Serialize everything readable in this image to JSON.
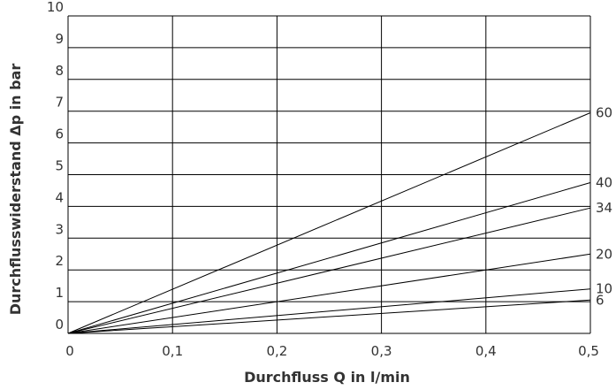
{
  "chart_data": {
    "type": "line",
    "title": "",
    "xlabel": "Durchfluss Q in l/min",
    "ylabel": "Durchflusswiderstand Δp in bar",
    "xlim": [
      0,
      0.5
    ],
    "ylim": [
      0,
      10
    ],
    "x_ticks": [
      "0",
      "0,1",
      "0,2",
      "0,3",
      "0,4",
      "0,5"
    ],
    "y_ticks": [
      "0",
      "1",
      "2",
      "3",
      "4",
      "5",
      "6",
      "7",
      "8",
      "9",
      "10"
    ],
    "grid": true,
    "series": [
      {
        "name": "60",
        "x": [
          0,
          0.5
        ],
        "y": [
          0,
          6.95
        ]
      },
      {
        "name": "40",
        "x": [
          0,
          0.5
        ],
        "y": [
          0,
          4.75
        ]
      },
      {
        "name": "34",
        "x": [
          0,
          0.5
        ],
        "y": [
          0,
          3.95
        ]
      },
      {
        "name": "20",
        "x": [
          0,
          0.5
        ],
        "y": [
          0,
          2.5
        ]
      },
      {
        "name": "10",
        "x": [
          0,
          0.5
        ],
        "y": [
          0,
          1.4
        ]
      },
      {
        "name": "6",
        "x": [
          0,
          0.5
        ],
        "y": [
          0,
          1.05
        ]
      }
    ],
    "colors": {
      "line": "#000000",
      "grid": "#000000",
      "text": "#333333"
    }
  }
}
